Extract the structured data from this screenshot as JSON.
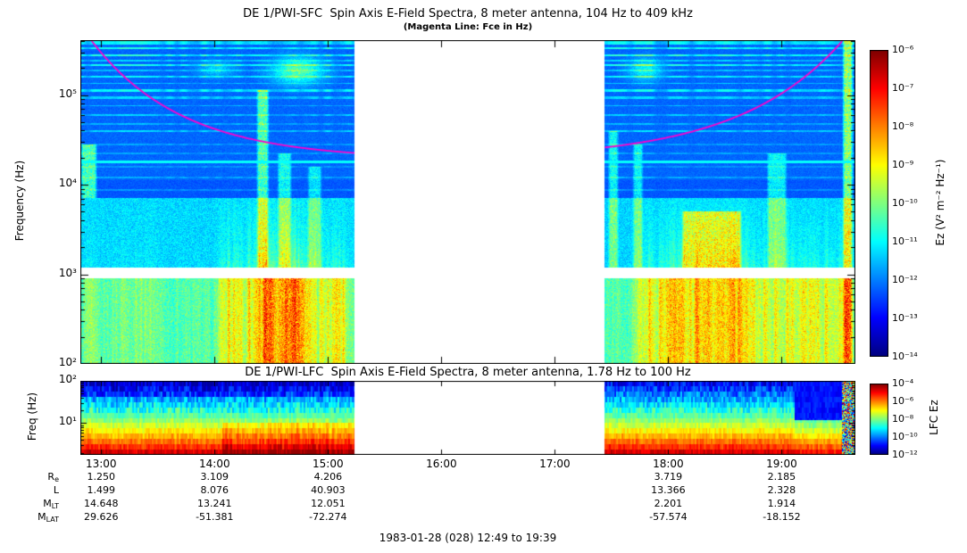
{
  "titles": {
    "sfc": "DE 1/PWI-SFC  Spin Axis E-Field Spectra, 8 meter antenna, 104 Hz to 409 kHz",
    "sfc_sub": "(Magenta Line: Fce in Hz)",
    "lfc": "DE 1/PWI-LFC  Spin Axis E-Field Spectra, 8 meter antenna, 1.78 Hz to 100 Hz"
  },
  "axes": {
    "sfc_ylabel": "Frequency (Hz)",
    "sfc_yticks": [
      "10⁵",
      "10⁴",
      "10³",
      "10²"
    ],
    "lfc_ylabel": "Freq (Hz)",
    "lfc_yticks": [
      "10²",
      "10¹"
    ],
    "time_ticks": [
      "13:00",
      "14:00",
      "15:00",
      "16:00",
      "17:00",
      "18:00",
      "19:00"
    ]
  },
  "colorbars": {
    "sfc_label": "Ez (V² m⁻² Hz⁻¹)",
    "sfc_ticks": [
      "10⁻⁶",
      "10⁻⁷",
      "10⁻⁸",
      "10⁻⁹",
      "10⁻¹⁰",
      "10⁻¹¹",
      "10⁻¹²",
      "10⁻¹³",
      "10⁻¹⁴"
    ],
    "lfc_label": "LFC Ez",
    "lfc_ticks": [
      "10⁻⁴",
      "10⁻⁶",
      "10⁻⁸",
      "10⁻¹⁰",
      "10⁻¹²"
    ]
  },
  "ephemeris": {
    "rows": [
      {
        "label": "R",
        "sub": "e",
        "values": [
          "1.250",
          "3.109",
          "4.206",
          "",
          "",
          "3.719",
          "2.185"
        ]
      },
      {
        "label": "L",
        "sub": "",
        "values": [
          "1.499",
          "8.076",
          "40.903",
          "",
          "",
          "13.366",
          "2.328"
        ]
      },
      {
        "label": "M",
        "sub": "LT",
        "values": [
          "14.648",
          "13.241",
          "12.051",
          "",
          "",
          "2.201",
          "1.914"
        ]
      },
      {
        "label": "M",
        "sub": "LAT",
        "values": [
          "29.626",
          "-51.381",
          "-72.274",
          "",
          "",
          "-57.574",
          "-18.152"
        ]
      }
    ]
  },
  "footer": "1983-01-28 (028) 12:49 to 19:39",
  "chart_data": [
    {
      "type": "heatmap",
      "instrument": "DE 1/PWI-SFC",
      "title": "DE 1/PWI-SFC  Spin Axis E-Field Spectra, 8 meter antenna, 104 Hz to 409 kHz",
      "subtitle": "(Magenta Line: Fce in Hz)",
      "ylabel": "Frequency (Hz)",
      "y_scale": "log",
      "y_log10_hz_range": [
        2.0,
        5.612
      ],
      "y_tick_labels": [
        "10²",
        "10³",
        "10⁴",
        "10⁵"
      ],
      "x_time_range": [
        "12:49",
        "19:39"
      ],
      "x_minutes_range": [
        0,
        410
      ],
      "x_ticks_minutes": [
        11,
        71,
        131,
        191,
        251,
        311,
        371
      ],
      "x_tick_labels": [
        "13:00",
        "14:00",
        "15:00",
        "16:00",
        "17:00",
        "18:00",
        "19:00"
      ],
      "value_label": "Ez (V² m⁻² Hz⁻¹)",
      "value_log10_range": [
        -14,
        -6
      ],
      "colorbar_tick_labels": [
        "10⁻⁶",
        "10⁻⁷",
        "10⁻⁸",
        "10⁻⁹",
        "10⁻¹⁰",
        "10⁻¹¹",
        "10⁻¹²",
        "10⁻¹³",
        "10⁻¹⁴"
      ],
      "data_gap_minutes": [
        145,
        277.5
      ],
      "white_band_logf": [
        2.96,
        3.07
      ],
      "cyan_line_logf": 4.25,
      "magenta_fce_line": {
        "logf_min": 4.28,
        "amp": 1.5,
        "tau_left_min": 48,
        "tau_right_min": 55,
        "color": "#ff00cc"
      },
      "interference_lines": [
        {
          "f": 5.59,
          "w": 0.025,
          "s": 0.18
        },
        {
          "f": 5.52,
          "w": 0.012,
          "s": 0.2
        },
        {
          "f": 5.44,
          "w": 0.012,
          "s": 0.22
        },
        {
          "f": 5.38,
          "w": 0.009,
          "s": 0.12
        },
        {
          "f": 5.33,
          "w": 0.011,
          "s": 0.2
        },
        {
          "f": 5.27,
          "w": 0.009,
          "s": 0.1
        },
        {
          "f": 5.205,
          "w": 0.01,
          "s": 0.17
        },
        {
          "f": 5.13,
          "w": 0.009,
          "s": 0.12
        },
        {
          "f": 5.05,
          "w": 0.013,
          "s": 0.18
        },
        {
          "f": 4.97,
          "w": 0.011,
          "s": 0.13
        },
        {
          "f": 4.88,
          "w": 0.009,
          "s": 0.1
        },
        {
          "f": 4.78,
          "w": 0.009,
          "s": 0.12
        },
        {
          "f": 4.68,
          "w": 0.009,
          "s": 0.09
        },
        {
          "f": 4.6,
          "w": 0.011,
          "s": 0.13
        },
        {
          "f": 4.45,
          "w": 0.009,
          "s": 0.07
        },
        {
          "f": 4.35,
          "w": 0.009,
          "s": 0.07
        },
        {
          "f": 4.2,
          "w": 0.009,
          "s": 0.06
        },
        {
          "f": 4.08,
          "w": 0.009,
          "s": 0.08
        },
        {
          "f": 3.94,
          "w": 0.009,
          "s": 0.07
        }
      ],
      "features": {
        "low_bursts": [
          {
            "t": [
              0,
              10
            ],
            "amp": 0.15
          },
          {
            "t": [
              12,
              45
            ],
            "amp": 0.08
          },
          {
            "t": [
              70,
              148
            ],
            "amp": 0.26
          },
          {
            "t": [
              88,
              124
            ],
            "amp": 0.3
          },
          {
            "t": [
              290,
              410
            ],
            "amp": 0.27
          },
          {
            "t": [
              300,
              355
            ],
            "amp": 0.12
          }
        ],
        "streaks": [
          {
            "t": [
              0,
              9
            ],
            "logf": [
              3.85,
              4.45
            ],
            "amp": 0.3
          },
          {
            "t": [
              93,
              100
            ],
            "logf": [
              3.07,
              5.05
            ],
            "amp": 0.3
          },
          {
            "t": [
              104,
              112
            ],
            "logf": [
              3.07,
              4.35
            ],
            "amp": 0.22
          },
          {
            "t": [
              120,
              128
            ],
            "logf": [
              3.07,
              4.2
            ],
            "amp": 0.18
          },
          {
            "t": [
              279,
              285
            ],
            "logf": [
              3.07,
              4.6
            ],
            "amp": 0.22
          },
          {
            "t": [
              292,
              298
            ],
            "logf": [
              3.07,
              4.45
            ],
            "amp": 0.2
          },
          {
            "t": [
              318,
              350
            ],
            "logf": [
              3.07,
              3.7
            ],
            "amp": 0.32
          },
          {
            "t": [
              363,
              374
            ],
            "logf": [
              3.07,
              4.35
            ],
            "amp": 0.2
          },
          {
            "t": [
              403,
              409
            ],
            "logf": [
              2.0,
              5.61
            ],
            "amp": 0.38
          }
        ],
        "blobs": [
          {
            "t": [
              98,
              132
            ],
            "logf": [
              5.08,
              5.46
            ],
            "amp": 0.3
          },
          {
            "t": [
              60,
              84
            ],
            "logf": [
              5.18,
              5.4
            ],
            "amp": 0.14
          },
          {
            "t": [
              288,
              310
            ],
            "logf": [
              5.12,
              5.44
            ],
            "amp": 0.2
          }
        ]
      },
      "notes": "Electric field spectrogram; data gap ~15:14-17:26 UT; broadband low-frequency bursts near 14:00-15:10 and 17:45-19:35; horizontal interference lines above 10 kHz; cyan instrumental line near 18 kHz; magenta electron cyclotron frequency (Fce) curve high at perigee ends, minimum near apogee."
    },
    {
      "type": "heatmap",
      "instrument": "DE 1/PWI-LFC",
      "title": "DE 1/PWI-LFC  Spin Axis E-Field Spectra, 8 meter antenna, 1.78 Hz to 100 Hz",
      "ylabel": "Freq (Hz)",
      "y_scale": "log",
      "y_log10_hz_range": [
        0.25,
        2.0
      ],
      "y_tick_labels": [
        "10¹",
        "10²"
      ],
      "x_minutes_range": [
        0,
        410
      ],
      "value_label": "LFC Ez",
      "value_log10_range": [
        -12,
        -4
      ],
      "colorbar_tick_labels": [
        "10⁻⁴",
        "10⁻⁶",
        "10⁻⁸",
        "10⁻¹⁰",
        "10⁻¹²"
      ],
      "data_gap_minutes": [
        145,
        277.5
      ],
      "channels": 14,
      "profile_v_bottom": 0.96,
      "profile_v_top": 0.11,
      "profile_gamma": 0.85,
      "blue_block": {
        "t": [
          378,
          403
        ],
        "logf_above": 1.08,
        "v": 0.14
      },
      "noisy_tail_min": 403,
      "notes": "Low-frequency channel spectrogram: intensity decreases with frequency (red at bottom, blue at top); same data gap as SFC; depressed (blue) region above ~12 Hz near 19:05-19:30."
    }
  ]
}
